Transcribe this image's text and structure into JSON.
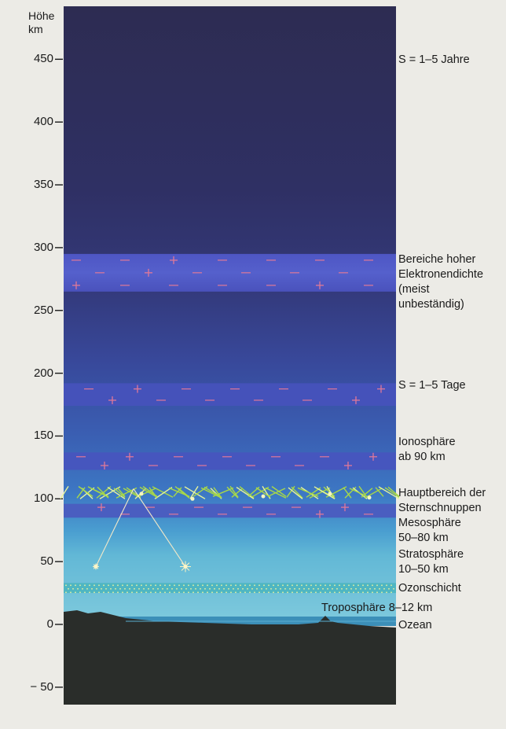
{
  "axis": {
    "title_line1": "Höhe",
    "title_line2": "km",
    "ticks": [
      450,
      400,
      350,
      300,
      250,
      200,
      150,
      100,
      50,
      0,
      -50
    ],
    "tick_labels": [
      "450",
      "400",
      "350",
      "300",
      "250",
      "200",
      "150",
      "100",
      "50",
      "0",
      "− 50"
    ]
  },
  "annotations": {
    "s_years": "S = 1–5 Jahre",
    "electron_line1": "Bereiche hoher",
    "electron_line2": "Elektronendichte",
    "electron_line3": "(meist",
    "electron_line4": "unbeständig)",
    "s_days": "S = 1–5 Tage",
    "ionosphere_line1": "Ionosphäre",
    "ionosphere_line2": "ab 90 km",
    "meteors_line1": "Hauptbereich der",
    "meteors_line2": "Sternschnuppen",
    "mesosphere_line1": "Mesosphäre",
    "mesosphere_line2": "50–80 km",
    "stratosphere_line1": "Stratosphäre",
    "stratosphere_line2": "10–50 km",
    "ozone": "Ozonschicht",
    "troposphere": "Troposphäre 8–12 km",
    "ocean": "Ozean"
  },
  "colors": {
    "page": "#ecebe6",
    "upper_sky": "#2d2c52",
    "sky_blue": "#3a64b8",
    "electron_band": "#4a50bc",
    "minus_marks": "#e07898",
    "ozone_band": "#4fb6c2",
    "meteor_green": "#b8e04a",
    "ground": "#2a2d2a"
  },
  "layers": [
    {
      "name": "Bereiche hoher Elektronendichte",
      "from_km": 265,
      "to_km": 295
    },
    {
      "name": "S = 1–5 Tage",
      "from_km": 174,
      "to_km": 192
    },
    {
      "name": "Ionosphäre",
      "from_km": 123,
      "to_km": 137
    },
    {
      "name": "Hauptbereich der Sternschnuppen",
      "from_km": 100,
      "to_km": 110
    },
    {
      "name": "Ozonschicht",
      "from_km": 25,
      "to_km": 33
    }
  ]
}
